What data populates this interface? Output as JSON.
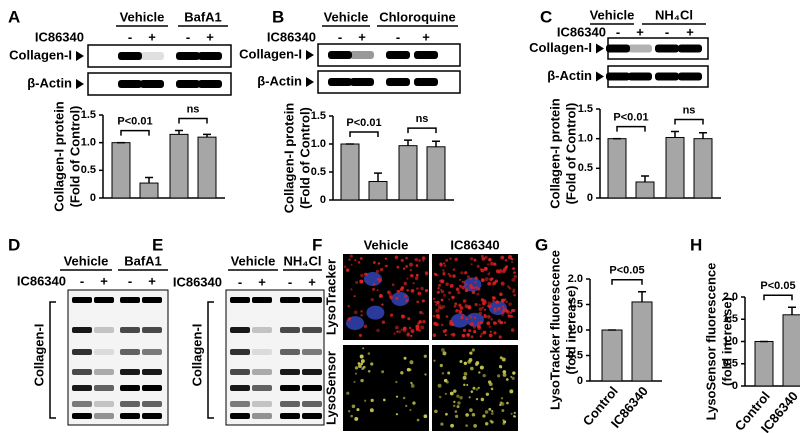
{
  "panels": [
    {
      "letter": "A",
      "groups": [
        "Vehicle",
        "BafA1"
      ],
      "treatment_label": "IC86340",
      "treatment": [
        "-",
        "+",
        "-",
        "+"
      ],
      "bands": [
        "Collagen-I",
        "β-Actin"
      ]
    },
    {
      "letter": "B",
      "groups": [
        "Vehicle",
        "Chloroquine"
      ],
      "treatment_label": "IC86340",
      "treatment": [
        "-",
        "+",
        "-",
        "+"
      ],
      "bands": [
        "Collagen-I",
        "β-Actin"
      ]
    },
    {
      "letter": "C",
      "groups": [
        "Vehicle",
        "NH₄Cl"
      ],
      "treatment_label": "IC86340",
      "treatment": [
        "-",
        "+",
        "-",
        "+"
      ],
      "bands": [
        "Collagen-I",
        "β-Actin"
      ]
    },
    {
      "letter": "D",
      "groups": [
        "Vehicle",
        "BafA1"
      ],
      "treatment_label": "IC86340",
      "treatment": [
        "-",
        "+",
        "-",
        "+"
      ],
      "bands": [
        "Collagen-I"
      ]
    },
    {
      "letter": "E",
      "groups": [
        "Vehicle",
        "NH₄Cl"
      ],
      "treatment_label": "IC86340",
      "treatment": [
        "-",
        "+",
        "-",
        "+"
      ],
      "bands": [
        "Collagen-I"
      ]
    },
    {
      "letter": "F",
      "columns": [
        "Vehicle",
        "IC86340"
      ],
      "rows": [
        "LysoTracker",
        "LysoSensor"
      ]
    },
    {
      "letter": "G"
    },
    {
      "letter": "H"
    }
  ],
  "chart_data": [
    {
      "type": "bar",
      "ylabel": [
        "Collagen-I protein",
        "(Fold of Control)"
      ],
      "categories": [
        null,
        null,
        null,
        null
      ],
      "values": [
        1.0,
        0.27,
        1.15,
        1.1
      ],
      "errors": [
        0,
        0.1,
        0.07,
        0.05
      ],
      "color": "#a6a6a6",
      "ylim": [
        0,
        1.5
      ],
      "yticks": [
        0,
        0.5,
        {
          "value": 1,
          "label": "1.0"
        },
        1.5
      ],
      "annotations": [
        "P<0.01",
        "ns"
      ]
    },
    {
      "type": "bar",
      "ylabel": [
        "Collagen-I protein",
        "(Fold of Control)"
      ],
      "categories": [
        null,
        null,
        null,
        null
      ],
      "values": [
        1.0,
        0.33,
        0.97,
        0.95
      ],
      "errors": [
        0,
        0.15,
        0.1,
        0.1
      ],
      "color": "#a6a6a6",
      "ylim": [
        0,
        1.5
      ],
      "yticks": [
        0,
        0.5,
        {
          "value": 1,
          "label": "1.0"
        },
        1.5
      ],
      "annotations": [
        "P<0.01",
        "ns"
      ]
    },
    {
      "type": "bar",
      "ylabel": [
        "Collagen-I protein",
        "(Fold of Control)"
      ],
      "categories": [
        null,
        null,
        null,
        null
      ],
      "values": [
        1.0,
        0.27,
        1.02,
        1.0
      ],
      "errors": [
        0,
        0.1,
        0.1,
        0.1
      ],
      "color": "#a6a6a6",
      "ylim": [
        0,
        1.5
      ],
      "yticks": [
        0,
        0.5,
        {
          "value": 1,
          "label": "1.0"
        },
        1.5
      ],
      "annotations": [
        "P<0.01",
        "ns"
      ]
    },
    {
      "type": "bar",
      "ylabel": [
        "LysoTracker fluorescence",
        "(fold increase)"
      ],
      "categories": [
        "Control",
        "IC86340"
      ],
      "values": [
        1.0,
        1.55
      ],
      "errors": [
        0,
        0.2
      ],
      "color": "#a6a6a6",
      "ylim": [
        0,
        2.0
      ],
      "yticks": [
        0,
        0.5,
        {
          "value": 1,
          "label": "1.0"
        },
        1.5,
        {
          "value": 2,
          "label": "2.0"
        }
      ],
      "annotations": [
        "P<0.05"
      ]
    },
    {
      "type": "bar",
      "ylabel": [
        "LysoSensor fluorescence",
        "(fold increase)"
      ],
      "categories": [
        "Control",
        "IC86340"
      ],
      "values": [
        1.0,
        1.6
      ],
      "errors": [
        0,
        0.17
      ],
      "color": "#a6a6a6",
      "ylim": [
        0,
        2.0
      ],
      "yticks": [
        0,
        0.5,
        {
          "value": 1,
          "label": "1.0"
        },
        1.5,
        {
          "value": 2,
          "label": "2.0"
        }
      ],
      "annotations": [
        "P<0.05"
      ]
    }
  ]
}
